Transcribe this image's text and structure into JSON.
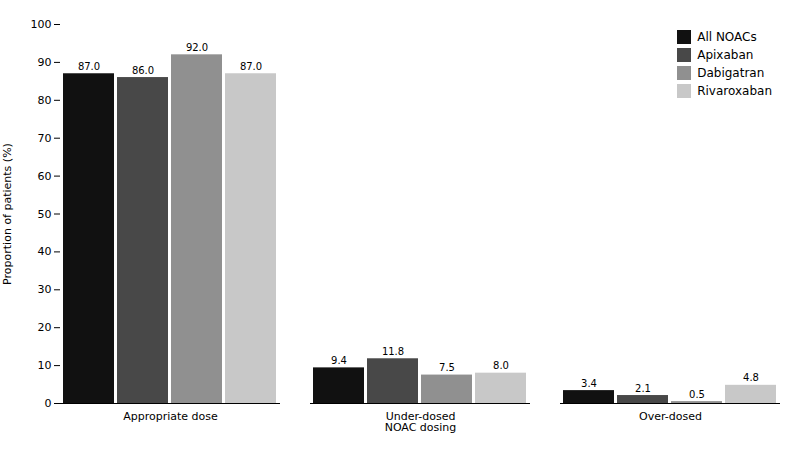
{
  "chart_data": {
    "type": "bar",
    "categories": [
      "Appropriate dose",
      "Under-dosed\nNOAC dosing",
      "Over-dosed"
    ],
    "series": [
      {
        "name": "All NOACs",
        "color": "#111111",
        "values": [
          87.0,
          9.4,
          3.4
        ],
        "value_labels": [
          "87.0",
          "9.4",
          "3.4"
        ]
      },
      {
        "name": "Apixaban",
        "color": "#484848",
        "values": [
          86.0,
          11.8,
          2.1
        ],
        "value_labels": [
          "86.0",
          "11.8",
          "2.1"
        ]
      },
      {
        "name": "Dabigatran",
        "color": "#909090",
        "values": [
          92.0,
          7.5,
          0.5
        ],
        "value_labels": [
          "92.0",
          "7.5",
          "0.5"
        ]
      },
      {
        "name": "Rivaroxaban",
        "color": "#c8c8c8",
        "values": [
          87.0,
          8.0,
          4.8
        ],
        "value_labels": [
          "87.0",
          "8.0",
          "4.8"
        ]
      }
    ],
    "ylabel": "Proportion of patients (%)",
    "ylim": [
      0,
      100
    ],
    "yticks": [
      0,
      10,
      20,
      30,
      40,
      50,
      60,
      70,
      80,
      90,
      100
    ],
    "grid": false,
    "data_labels": true,
    "legend": "upper right"
  }
}
